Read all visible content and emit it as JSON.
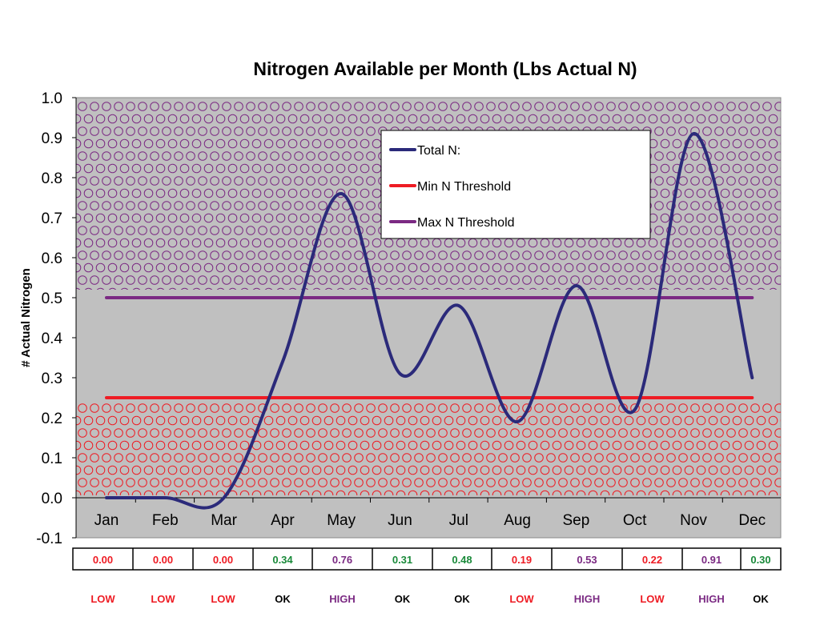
{
  "chart_data": {
    "type": "line",
    "title": "Nitrogen Available per Month (Lbs Actual N)",
    "ylabel": "# Actual Nitrogen",
    "xlabel": "",
    "ylim": [
      -0.1,
      1.0
    ],
    "yticks": [
      "1.0",
      "0.9",
      "0.8",
      "0.7",
      "0.6",
      "0.5",
      "0.4",
      "0.3",
      "0.2",
      "0.1",
      "0.0",
      "-0.1"
    ],
    "categories": [
      "Jan",
      "Feb",
      "Mar",
      "Apr",
      "May",
      "Jun",
      "Jul",
      "Aug",
      "Sep",
      "Oct",
      "Nov",
      "Dec"
    ],
    "series": [
      {
        "name": "Total N:",
        "color": "#2b2a7a",
        "smooth": true,
        "values": [
          0.0,
          0.0,
          0.0,
          0.34,
          0.76,
          0.31,
          0.48,
          0.19,
          0.53,
          0.22,
          0.91,
          0.3
        ]
      },
      {
        "name": "Min N Threshold",
        "color": "#ee1c24",
        "values": [
          0.25,
          0.25,
          0.25,
          0.25,
          0.25,
          0.25,
          0.25,
          0.25,
          0.25,
          0.25,
          0.25,
          0.25
        ]
      },
      {
        "name": "Max N Threshold",
        "color": "#7b2a83",
        "values": [
          0.5,
          0.5,
          0.5,
          0.5,
          0.5,
          0.5,
          0.5,
          0.5,
          0.5,
          0.5,
          0.5,
          0.5
        ]
      }
    ],
    "legend_placement": "top-center",
    "background_color": "#c0c0c0",
    "bands": [
      {
        "range": [
          0.0,
          0.25
        ],
        "pattern": "circles",
        "color": "#ee1c24"
      },
      {
        "range": [
          0.5,
          1.0
        ],
        "pattern": "circles",
        "color": "#7b2a83"
      }
    ],
    "table": {
      "values": [
        "0.00",
        "0.00",
        "0.00",
        "0.34",
        "0.76",
        "0.31",
        "0.48",
        "0.19",
        "0.53",
        "0.22",
        "0.91",
        "0.30"
      ],
      "status": [
        "LOW",
        "LOW",
        "LOW",
        "OK",
        "HIGH",
        "OK",
        "OK",
        "LOW",
        "HIGH",
        "LOW",
        "HIGH",
        "OK"
      ]
    },
    "status_colors": {
      "LOW": "#ee1c24",
      "OK": "#000000",
      "HIGH": "#7b2a83"
    },
    "value_colors": {
      "LOW": "#ee1c24",
      "OK": "#1a8a3a",
      "HIGH": "#7b2a83"
    }
  }
}
